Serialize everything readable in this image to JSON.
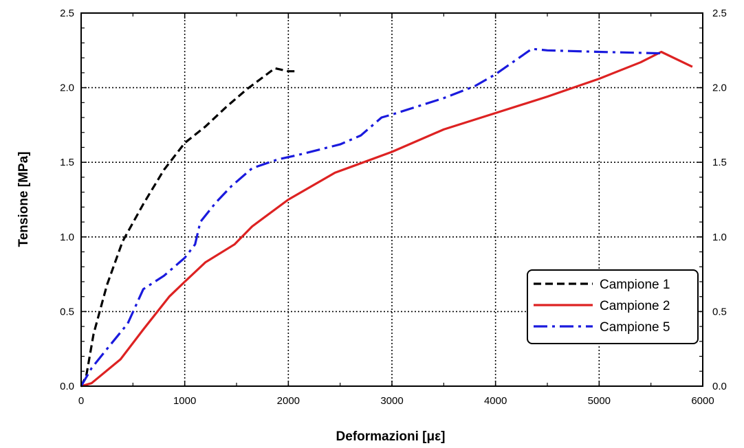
{
  "chart_data": {
    "type": "line",
    "title": "",
    "xlabel": "Deformazioni [με]",
    "ylabel": "Tensione [MPa]",
    "xlim": [
      0,
      6000
    ],
    "ylim": [
      0,
      2.5
    ],
    "x_ticks": [
      0,
      1000,
      2000,
      3000,
      4000,
      5000,
      6000
    ],
    "x_tick_labels": [
      "0",
      "1000",
      "2000",
      "3000",
      "4000",
      "5000",
      "6000"
    ],
    "y_ticks": [
      0.0,
      0.5,
      1.0,
      1.5,
      2.0,
      2.5
    ],
    "y_tick_labels": [
      "0.0",
      "0.5",
      "1.0",
      "1.5",
      "2.0",
      "2.5"
    ],
    "right_axis_tick_labels": [
      "0.0",
      "0.5",
      "1.0",
      "1.5",
      "2.0",
      "2.5"
    ],
    "grid": true,
    "legend_position": "bottom-right",
    "series": [
      {
        "name": "Campione 1",
        "color": "#000000",
        "dash": "dashed",
        "x": [
          0,
          50,
          120,
          250,
          400,
          600,
          800,
          1000,
          1200,
          1400,
          1600,
          1870,
          2000,
          2070
        ],
        "y": [
          0.0,
          0.07,
          0.35,
          0.68,
          0.97,
          1.22,
          1.45,
          1.63,
          1.74,
          1.87,
          1.99,
          2.13,
          2.11,
          2.11
        ]
      },
      {
        "name": "Campione 2",
        "color": "#dd2222",
        "dash": "solid",
        "x": [
          0,
          100,
          380,
          600,
          850,
          1000,
          1200,
          1480,
          1650,
          2000,
          2450,
          3000,
          3500,
          4000,
          4500,
          5000,
          5400,
          5600,
          5900
        ],
        "y": [
          0.0,
          0.02,
          0.18,
          0.38,
          0.6,
          0.7,
          0.83,
          0.95,
          1.07,
          1.25,
          1.43,
          1.57,
          1.72,
          1.83,
          1.94,
          2.06,
          2.17,
          2.24,
          2.14
        ]
      },
      {
        "name": "Campione 5",
        "color": "#1a1add",
        "dash": "dashdot",
        "x": [
          0,
          100,
          250,
          450,
          600,
          800,
          1000,
          1100,
          1150,
          1300,
          1450,
          1650,
          1900,
          2100,
          2500,
          2700,
          2900,
          3000,
          3500,
          3800,
          4000,
          4350,
          4500,
          5000,
          5600
        ],
        "y": [
          0.0,
          0.12,
          0.25,
          0.42,
          0.65,
          0.74,
          0.86,
          0.95,
          1.1,
          1.23,
          1.34,
          1.46,
          1.52,
          1.55,
          1.62,
          1.68,
          1.8,
          1.82,
          1.93,
          2.01,
          2.09,
          2.26,
          2.25,
          2.24,
          2.23
        ]
      }
    ]
  }
}
